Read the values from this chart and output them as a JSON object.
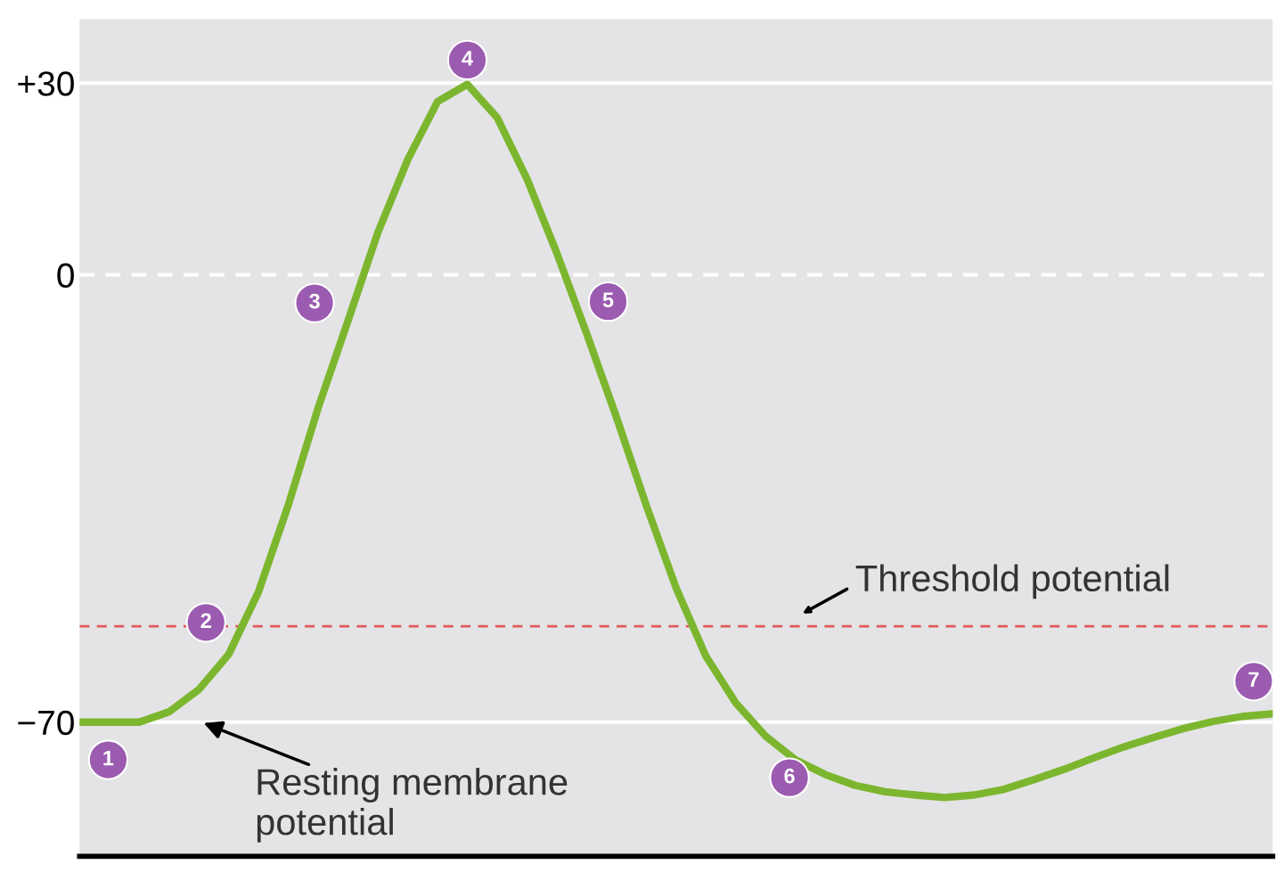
{
  "chart_data": {
    "type": "line",
    "categories": [
      null,
      null,
      null,
      null,
      null,
      null,
      null,
      null,
      null,
      null,
      null,
      null,
      null,
      null,
      null,
      null,
      null,
      null,
      null,
      null,
      null,
      null,
      null,
      null,
      null,
      null,
      null,
      null,
      null,
      null,
      null,
      null,
      null,
      null,
      null,
      null,
      null,
      null,
      null,
      null,
      null
    ],
    "series": [
      {
        "color": "#7cb62f",
        "values": [
          -70,
          -70,
          -70,
          -68.4,
          -64.9,
          -59.4,
          -49.6,
          -36.0,
          -20.8,
          -7.2,
          6.6,
          18.0,
          27.1,
          29.8,
          24.6,
          15.0,
          3.4,
          -9.2,
          -22.3,
          -36.1,
          -49.0,
          -59.7,
          -67.0,
          -72.2,
          -75.9,
          -78.2,
          -79.9,
          -80.9,
          -81.4,
          -81.8,
          -81.4,
          -80.5,
          -79.0,
          -77.4,
          -75.6,
          -73.9,
          -72.4,
          -71.0,
          -69.9,
          -69.1,
          -68.7
        ]
      }
    ],
    "ylim": [
      -91,
      40
    ],
    "yticks": [
      {
        "value": 30,
        "label": "+30"
      },
      0,
      {
        "value": -70,
        "label": "−70"
      }
    ],
    "tick_labels": "y",
    "grid": false,
    "legend": false,
    "marker": "none",
    "line_style": "solid",
    "ref_lines": [
      {
        "axis": "y",
        "value": 30,
        "color": "#ffffff",
        "line_style": "solid"
      },
      {
        "axis": "y",
        "value": 0,
        "color": "#ffffff",
        "line_style": "dashed"
      },
      {
        "axis": "y",
        "value": -70,
        "color": "#ffffff",
        "line_style": "solid"
      },
      {
        "axis": "y",
        "value": -55,
        "color": "#e05a5a",
        "line_style": "dashed",
        "label": "Threshold potential"
      }
    ],
    "annotations": [
      {
        "text": "Resting membrane\npotential",
        "y": -70
      },
      {
        "text": "1",
        "y": -75.9
      },
      {
        "text": "2",
        "y": -54.4
      },
      {
        "text": "3",
        "y": -4.4
      },
      {
        "text": "4",
        "y": 33.6
      },
      {
        "text": "5",
        "y": -4.2
      },
      {
        "text": "6",
        "y": -78.7
      },
      {
        "text": "7",
        "y": -63.6
      }
    ]
  }
}
